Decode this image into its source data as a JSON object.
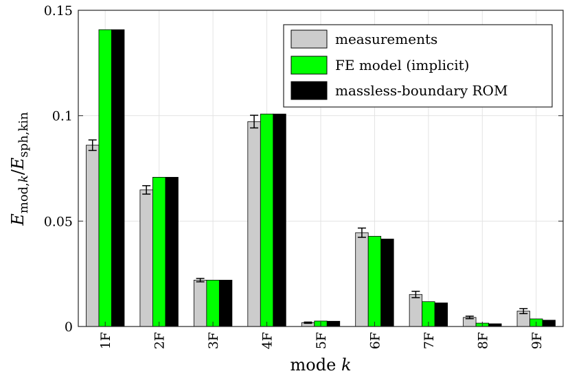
{
  "chart_data": {
    "type": "bar",
    "categories": [
      "1F",
      "2F",
      "3F",
      "4F",
      "5F",
      "6F",
      "7F",
      "8F",
      "9F"
    ],
    "series": [
      {
        "name": "measurements",
        "color": "#cccccc",
        "values": [
          0.086,
          0.0648,
          0.022,
          0.0972,
          0.0018,
          0.0445,
          0.0152,
          0.0043,
          0.0073
        ],
        "error": [
          0.0025,
          0.002,
          0.0008,
          0.003,
          0.0003,
          0.0022,
          0.0015,
          0.0006,
          0.0012
        ]
      },
      {
        "name": "FE model (implicit)",
        "color": "#00ff00",
        "values": [
          0.1408,
          0.0708,
          0.022,
          0.1008,
          0.0026,
          0.0428,
          0.0118,
          0.0016,
          0.0036
        ]
      },
      {
        "name": "massless-boundary ROM",
        "color": "#000000",
        "values": [
          0.1408,
          0.0708,
          0.022,
          0.1008,
          0.0025,
          0.0415,
          0.0112,
          0.0013,
          0.003
        ]
      }
    ],
    "ylim": [
      0,
      0.15
    ],
    "yticks": [
      {
        "value": 0,
        "label": "0"
      },
      {
        "value": 0.05,
        "label": "0.05"
      },
      {
        "value": 0.1,
        "label": "0.1"
      },
      {
        "value": 0.15,
        "label": "0.15"
      }
    ],
    "xlabel_text": "mode",
    "xlabel_var": "k",
    "ylabel": {
      "E1": "E",
      "sub1": "mod,",
      "sub1k": "k",
      "slash": "/",
      "E2": "E",
      "sub2": "sph,kin"
    },
    "grid": true,
    "legend_position": "top-right"
  }
}
